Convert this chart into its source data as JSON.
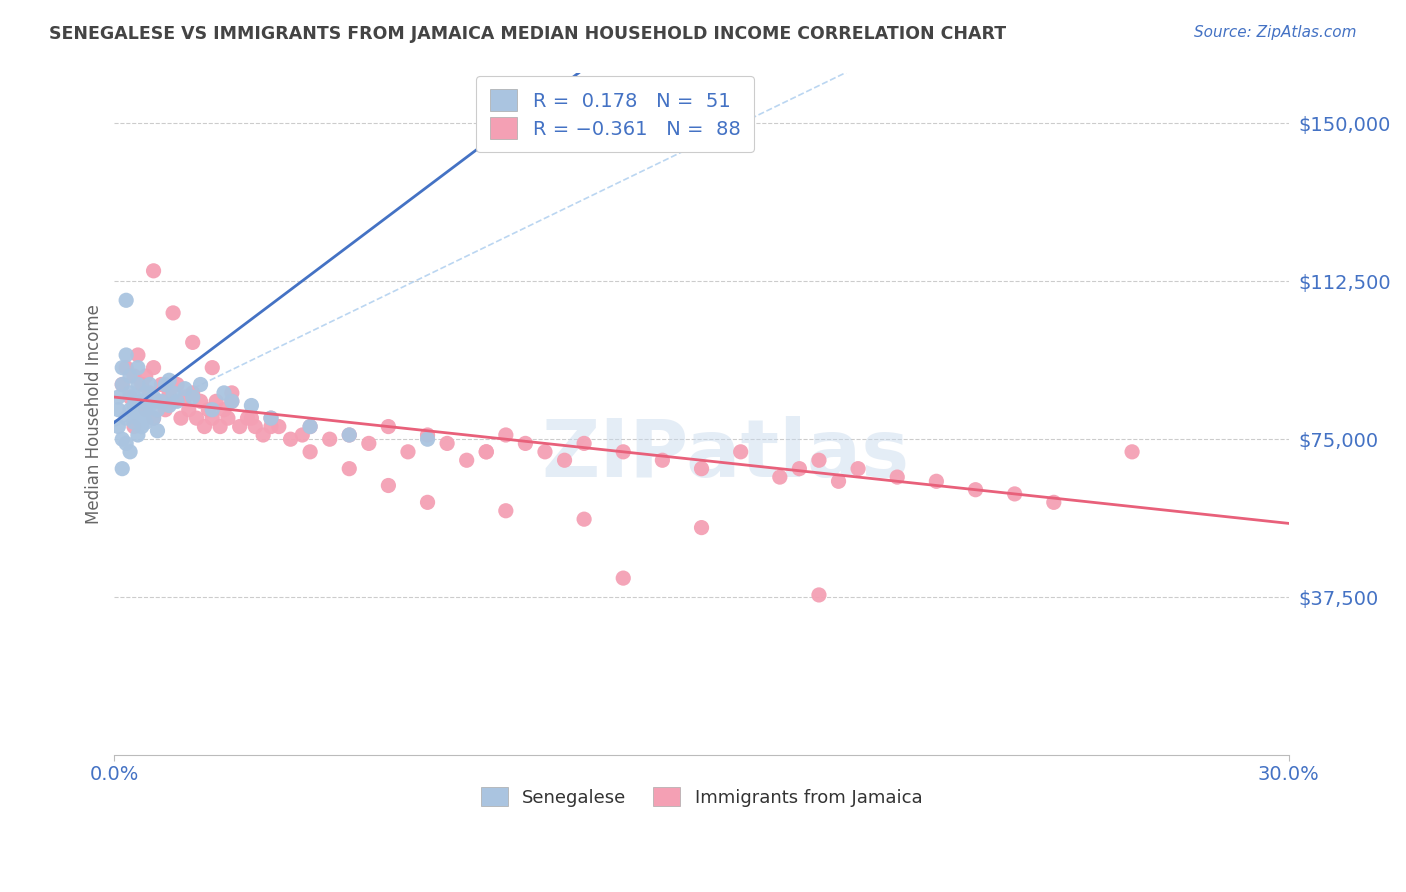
{
  "title": "SENEGALESE VS IMMIGRANTS FROM JAMAICA MEDIAN HOUSEHOLD INCOME CORRELATION CHART",
  "source": "Source: ZipAtlas.com",
  "ylabel": "Median Household Income",
  "yticks": [
    0,
    37500,
    75000,
    112500,
    150000
  ],
  "ytick_labels": [
    "",
    "$37,500",
    "$75,000",
    "$112,500",
    "$150,000"
  ],
  "xlim": [
    0.0,
    0.3
  ],
  "ylim": [
    0,
    162000
  ],
  "watermark": "ZIPatlas",
  "senegalese_color": "#aac4e0",
  "jamaica_color": "#f4a0b4",
  "senegalese_line_color": "#4472c4",
  "jamaica_line_color": "#e8607a",
  "senegalese_R": 0.178,
  "senegalese_N": 51,
  "jamaica_R": -0.361,
  "jamaica_N": 88,
  "label_color": "#4472c4",
  "title_color": "#444444",
  "grid_color": "#cccccc",
  "background_color": "#ffffff",
  "sen_x": [
    0.001,
    0.001,
    0.001,
    0.002,
    0.002,
    0.002,
    0.002,
    0.003,
    0.003,
    0.003,
    0.003,
    0.004,
    0.004,
    0.004,
    0.004,
    0.005,
    0.005,
    0.005,
    0.006,
    0.006,
    0.006,
    0.006,
    0.007,
    0.007,
    0.007,
    0.008,
    0.008,
    0.008,
    0.009,
    0.009,
    0.01,
    0.01,
    0.011,
    0.011,
    0.012,
    0.013,
    0.014,
    0.015,
    0.016,
    0.018,
    0.02,
    0.022,
    0.025,
    0.028,
    0.03,
    0.035,
    0.04,
    0.05,
    0.06,
    0.08,
    0.014
  ],
  "sen_y": [
    82000,
    78000,
    85000,
    92000,
    75000,
    88000,
    68000,
    95000,
    108000,
    80000,
    74000,
    82000,
    90000,
    72000,
    86000,
    79000,
    85000,
    83000,
    80000,
    76000,
    88000,
    92000,
    80000,
    84000,
    78000,
    82000,
    86000,
    79000,
    83000,
    88000,
    80000,
    85000,
    82000,
    77000,
    84000,
    88000,
    83000,
    86000,
    84000,
    87000,
    85000,
    88000,
    82000,
    86000,
    84000,
    83000,
    80000,
    78000,
    76000,
    75000,
    89000
  ],
  "jam_x": [
    0.002,
    0.003,
    0.004,
    0.005,
    0.005,
    0.006,
    0.007,
    0.007,
    0.008,
    0.008,
    0.009,
    0.01,
    0.01,
    0.011,
    0.012,
    0.013,
    0.014,
    0.015,
    0.016,
    0.017,
    0.018,
    0.019,
    0.02,
    0.021,
    0.022,
    0.023,
    0.024,
    0.025,
    0.026,
    0.027,
    0.028,
    0.029,
    0.03,
    0.032,
    0.034,
    0.036,
    0.038,
    0.04,
    0.042,
    0.045,
    0.048,
    0.05,
    0.055,
    0.06,
    0.065,
    0.07,
    0.075,
    0.08,
    0.085,
    0.09,
    0.095,
    0.1,
    0.105,
    0.11,
    0.115,
    0.12,
    0.13,
    0.14,
    0.15,
    0.16,
    0.17,
    0.175,
    0.18,
    0.185,
    0.19,
    0.2,
    0.21,
    0.22,
    0.23,
    0.24,
    0.01,
    0.015,
    0.02,
    0.025,
    0.03,
    0.035,
    0.04,
    0.05,
    0.06,
    0.07,
    0.08,
    0.1,
    0.12,
    0.15,
    0.18,
    0.095,
    0.13,
    0.26
  ],
  "jam_y": [
    88000,
    92000,
    85000,
    90000,
    78000,
    95000,
    84000,
    88000,
    82000,
    90000,
    86000,
    80000,
    92000,
    84000,
    88000,
    82000,
    86000,
    84000,
    88000,
    80000,
    85000,
    82000,
    86000,
    80000,
    84000,
    78000,
    82000,
    80000,
    84000,
    78000,
    82000,
    80000,
    84000,
    78000,
    80000,
    78000,
    76000,
    80000,
    78000,
    75000,
    76000,
    78000,
    75000,
    76000,
    74000,
    78000,
    72000,
    76000,
    74000,
    70000,
    72000,
    76000,
    74000,
    72000,
    70000,
    74000,
    72000,
    70000,
    68000,
    72000,
    66000,
    68000,
    70000,
    65000,
    68000,
    66000,
    65000,
    63000,
    62000,
    60000,
    115000,
    105000,
    98000,
    92000,
    86000,
    80000,
    78000,
    72000,
    68000,
    64000,
    60000,
    58000,
    56000,
    54000,
    38000,
    72000,
    42000,
    72000
  ]
}
